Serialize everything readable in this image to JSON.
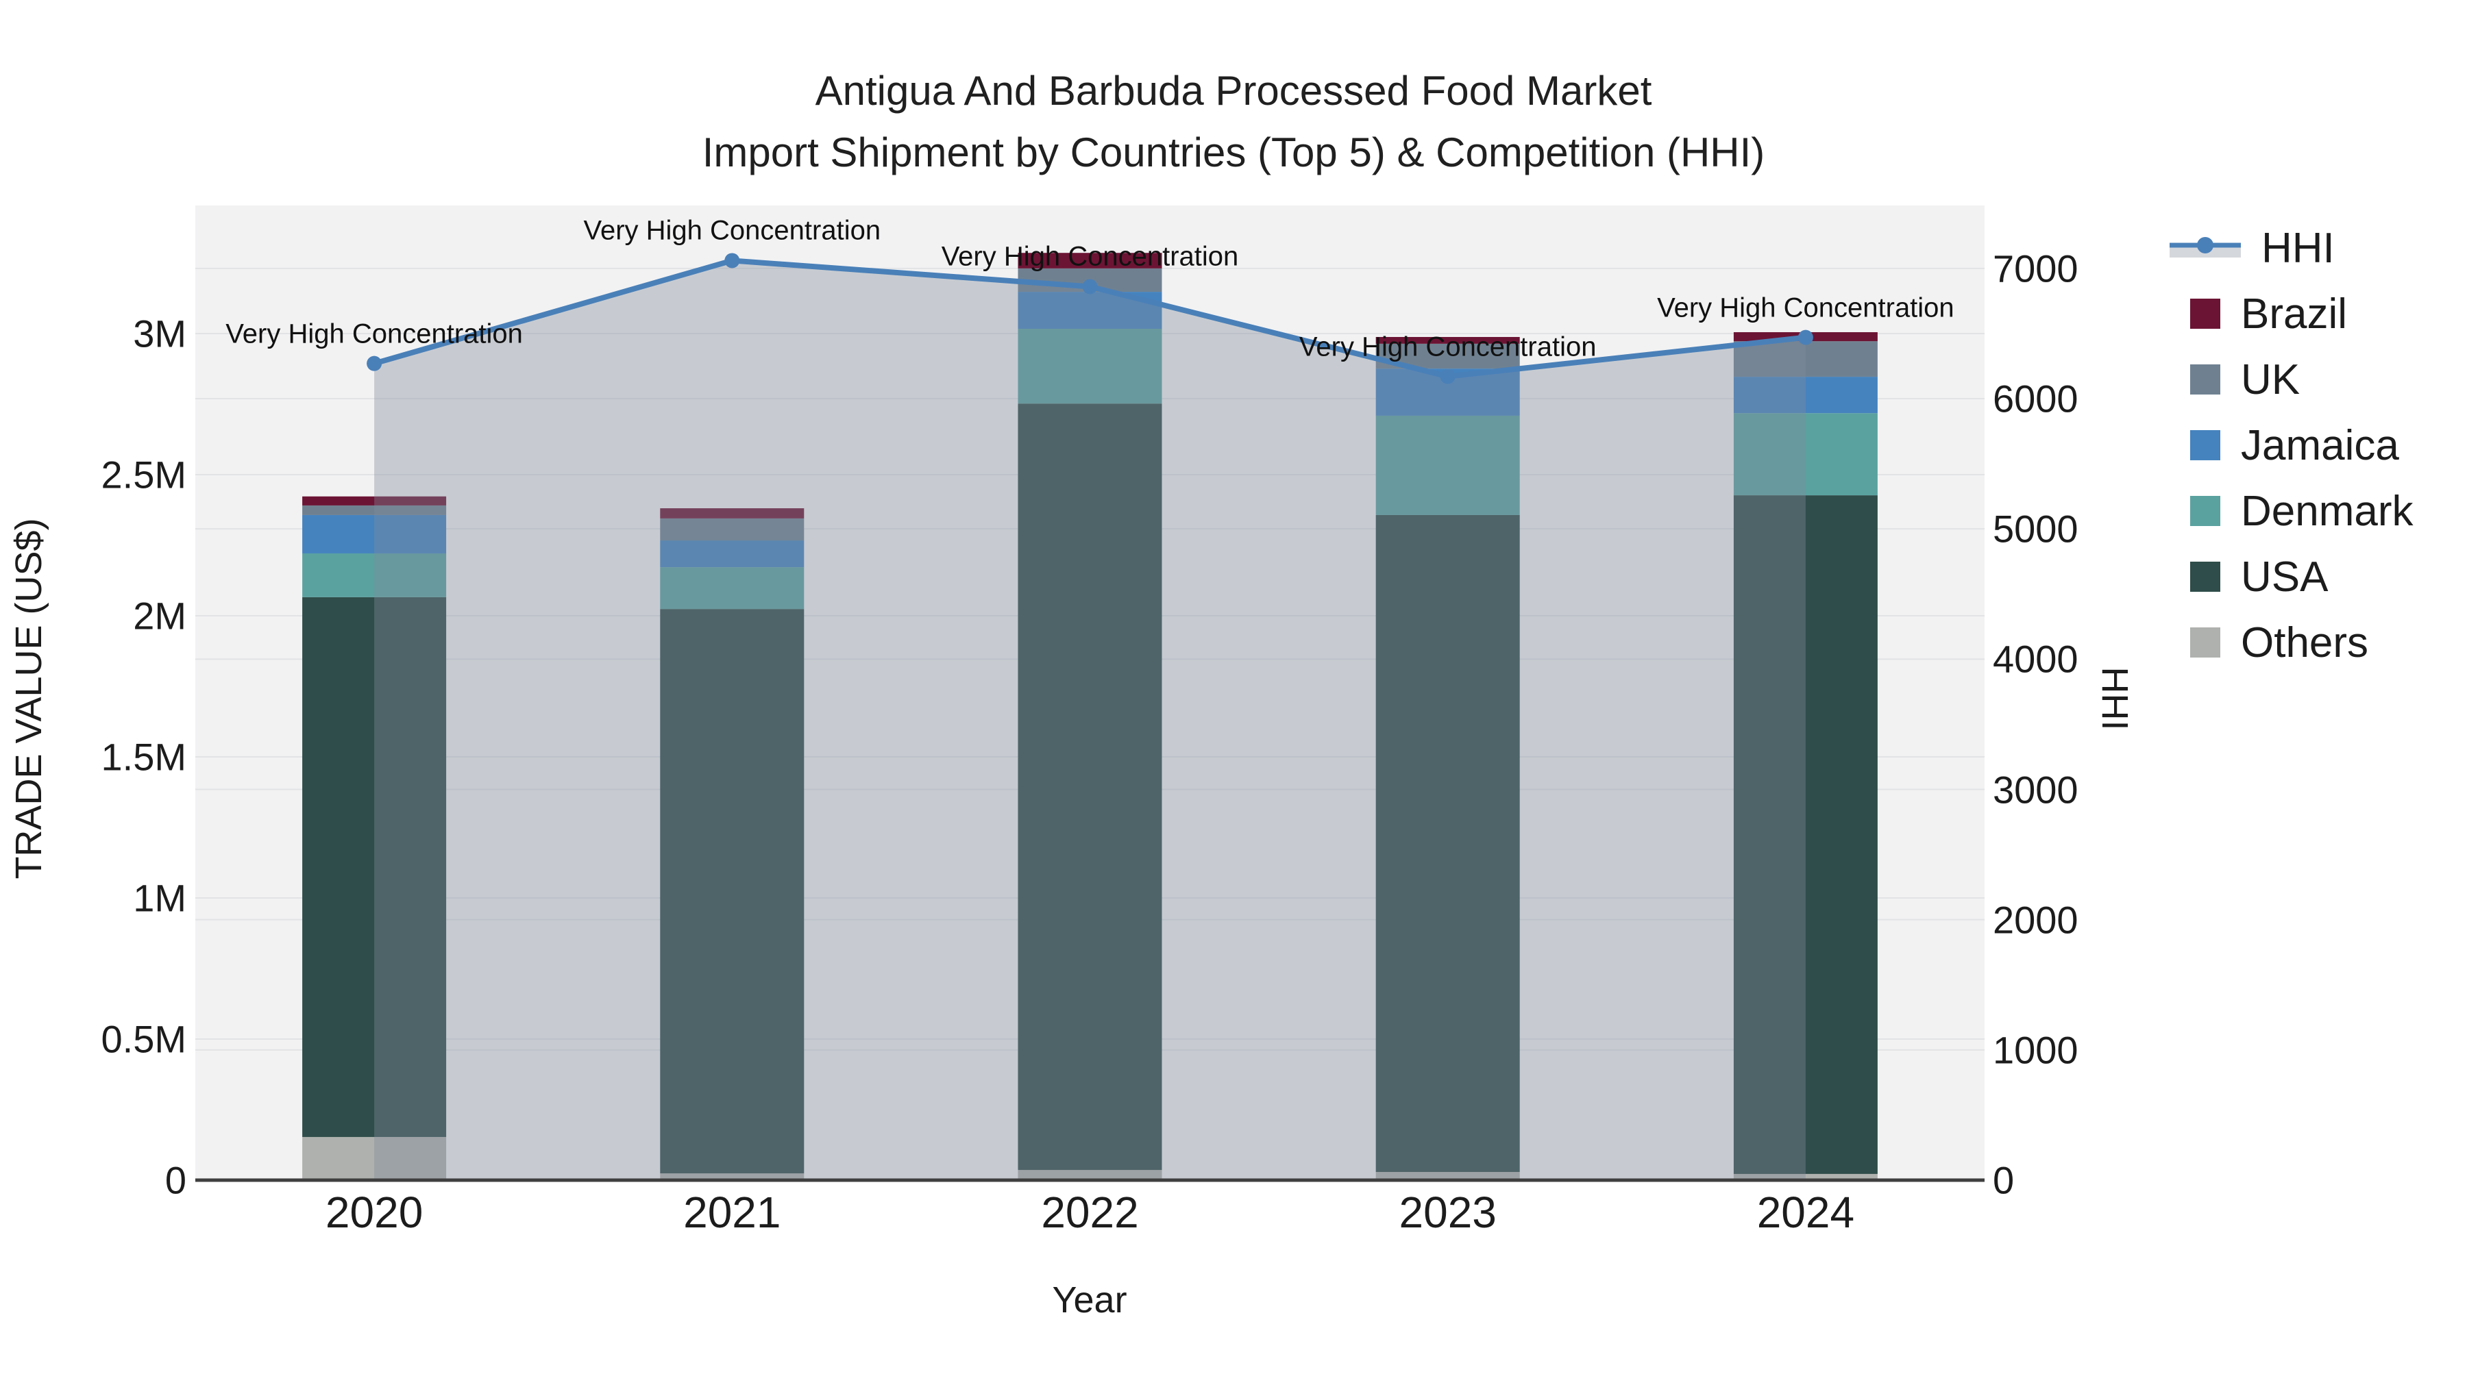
{
  "title_line1": "Antigua And Barbuda Processed Food Market",
  "title_line2": "Import Shipment by Countries (Top 5) & Competition (HHI)",
  "chart_data": {
    "type": "bar+line",
    "title": "Antigua And Barbuda Processed Food Market Import Shipment by Countries (Top 5) & Competition (HHI)",
    "xlabel": "Year",
    "ylabel_left": "TRADE VALUE (US$)",
    "ylabel_right": "HHI",
    "categories": [
      "2020",
      "2021",
      "2022",
      "2023",
      "2024"
    ],
    "y_left_ticks": [
      {
        "label": "0",
        "value": 0
      },
      {
        "label": "0.5M",
        "value": 500000
      },
      {
        "label": "1M",
        "value": 1000000
      },
      {
        "label": "1.5M",
        "value": 1500000
      },
      {
        "label": "2M",
        "value": 2000000
      },
      {
        "label": "2.5M",
        "value": 2500000
      },
      {
        "label": "3M",
        "value": 3000000
      }
    ],
    "y_right_ticks": [
      {
        "label": "0",
        "value": 0
      },
      {
        "label": "1000",
        "value": 1000
      },
      {
        "label": "2000",
        "value": 2000
      },
      {
        "label": "3000",
        "value": 3000
      },
      {
        "label": "4000",
        "value": 4000
      },
      {
        "label": "5000",
        "value": 5000
      },
      {
        "label": "6000",
        "value": 6000
      },
      {
        "label": "7000",
        "value": 7000
      }
    ],
    "ylim_left": [
      0,
      3454000
    ],
    "ylim_right": [
      0,
      7483
    ],
    "grid": true,
    "legend_position": "right",
    "series": [
      {
        "name": "Others",
        "color": "#aeb1ad",
        "values": [
          153000,
          24000,
          36000,
          29000,
          22000
        ]
      },
      {
        "name": "USA",
        "color": "#2f4d4a",
        "values": [
          1913000,
          2000000,
          2716000,
          2328000,
          2405000
        ]
      },
      {
        "name": "Denmark",
        "color": "#5aa2a0",
        "values": [
          155000,
          148000,
          265000,
          352000,
          291000
        ]
      },
      {
        "name": "Jamaica",
        "color": "#4583be",
        "values": [
          136000,
          95000,
          131000,
          167000,
          129000
        ]
      },
      {
        "name": "UK",
        "color": "#6f8191",
        "values": [
          34000,
          78000,
          83000,
          88000,
          126000
        ]
      },
      {
        "name": "Brazil",
        "color": "#6c1434",
        "values": [
          32000,
          36000,
          55000,
          24000,
          32000
        ]
      }
    ],
    "hhi_series": {
      "name": "HHI",
      "line_color": "#4a80b8",
      "area_fill": "rgba(128,140,155,0.38)",
      "values": [
        6270,
        7060,
        6860,
        6170,
        6470
      ]
    },
    "annotations": [
      {
        "text": "Very High Concentration",
        "year": "2020"
      },
      {
        "text": "Very High Concentration",
        "year": "2021"
      },
      {
        "text": "Very High Concentration",
        "year": "2022"
      },
      {
        "text": "Very High Concentration",
        "year": "2023"
      },
      {
        "text": "Very High Concentration",
        "year": "2024"
      }
    ],
    "legend": [
      {
        "label": "HHI",
        "type": "line"
      },
      {
        "label": "Brazil",
        "type": "swatch",
        "color": "#6c1434"
      },
      {
        "label": "UK",
        "type": "swatch",
        "color": "#6f8191"
      },
      {
        "label": "Jamaica",
        "type": "swatch",
        "color": "#4583be"
      },
      {
        "label": "Denmark",
        "type": "swatch",
        "color": "#5aa2a0"
      },
      {
        "label": "USA",
        "type": "swatch",
        "color": "#2f4d4a"
      },
      {
        "label": "Others",
        "type": "swatch",
        "color": "#aeb1ad"
      }
    ],
    "plot_bg": "#f2f2f3",
    "gridline_color": "#e2e3e5",
    "axisline_color": "#3f3f3f"
  }
}
